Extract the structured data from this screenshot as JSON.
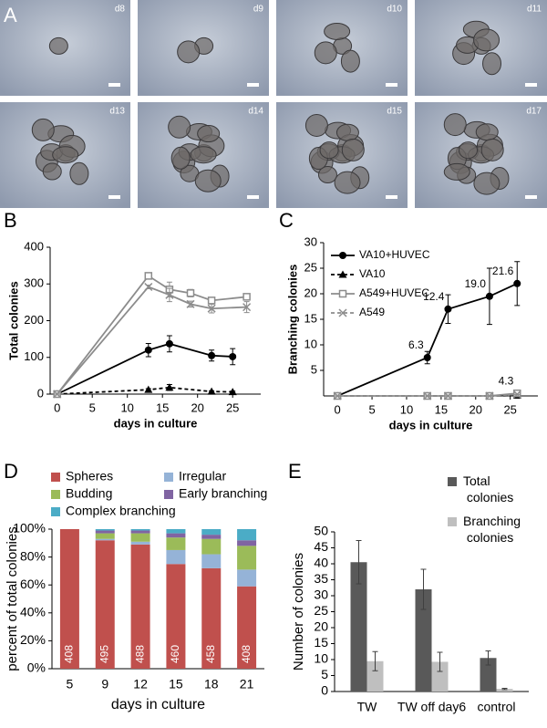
{
  "figure": {
    "panel_labels": [
      "A",
      "B",
      "C",
      "D",
      "E"
    ],
    "micrograph_labels": [
      "d8",
      "d9",
      "d10",
      "d11",
      "d13",
      "d14",
      "d15",
      "d17"
    ]
  },
  "chart_data": [
    {
      "type": "line",
      "ylabel": "Total colonies",
      "xlabel": "days in culture",
      "xlim": [
        -1,
        29
      ],
      "xticks": [
        0,
        5,
        10,
        15,
        20,
        25
      ],
      "ylim": [
        0,
        400
      ],
      "yticks": [
        0,
        100,
        200,
        300,
        400
      ],
      "series": [
        {
          "name": "VA10+HUVEC",
          "color": "#000000",
          "marker": "circle",
          "dash": false,
          "x": [
            0,
            13,
            16,
            22,
            25
          ],
          "values": [
            0,
            120,
            137,
            105,
            102
          ],
          "errors": [
            0,
            18,
            22,
            15,
            22
          ]
        },
        {
          "name": "VA10",
          "color": "#000000",
          "marker": "triangle",
          "dash": true,
          "x": [
            0,
            13,
            16,
            22,
            25
          ],
          "values": [
            0,
            12,
            18,
            7,
            6
          ],
          "errors": [
            0,
            3,
            8,
            2,
            2
          ]
        },
        {
          "name": "A549+HUVEC",
          "color": "#8c8c8c",
          "marker": "square",
          "dash": false,
          "x": [
            0,
            13,
            16,
            19,
            22,
            27
          ],
          "values": [
            0,
            322,
            285,
            275,
            255,
            265
          ],
          "errors": [
            0,
            8,
            20,
            10,
            8,
            8
          ]
        },
        {
          "name": "A549",
          "color": "#8c8c8c",
          "marker": "x",
          "dash": false,
          "x": [
            0,
            13,
            16,
            19,
            22,
            27
          ],
          "values": [
            0,
            292,
            270,
            245,
            233,
            237
          ],
          "errors": [
            0,
            5,
            18,
            8,
            12,
            15
          ]
        }
      ],
      "legend": false
    },
    {
      "type": "line",
      "ylabel": "Branching colonies",
      "xlabel": "days in culture",
      "xlim": [
        -2,
        29
      ],
      "xticks": [
        0,
        5,
        10,
        15,
        20,
        25
      ],
      "ylim": [
        0,
        30
      ],
      "yticks": [
        5,
        10,
        15,
        20,
        25,
        30
      ],
      "series": [
        {
          "name": "VA10+HUVEC",
          "color": "#000000",
          "marker": "circle",
          "dash": false,
          "x": [
            0,
            13,
            16,
            22,
            26
          ],
          "values": [
            0,
            7.5,
            17,
            19.5,
            22
          ],
          "errors": [
            0,
            1.2,
            2.8,
            5.5,
            4.3
          ]
        },
        {
          "name": "VA10",
          "color": "#000000",
          "marker": "triangle",
          "dash": true,
          "x": [
            0,
            13,
            16,
            22,
            26
          ],
          "values": [
            0,
            0,
            0,
            0,
            0.1
          ],
          "errors": [
            0,
            0,
            0,
            0,
            0
          ]
        },
        {
          "name": "A549+HUVEC",
          "color": "#8c8c8c",
          "marker": "square",
          "dash": false,
          "x": [
            0,
            13,
            16,
            22,
            26
          ],
          "values": [
            0,
            0,
            0,
            0,
            0.5
          ],
          "errors": [
            0,
            0,
            0,
            0,
            0.2
          ]
        },
        {
          "name": "A549",
          "color": "#8c8c8c",
          "marker": "x",
          "dash": true,
          "x": [
            0,
            13,
            16,
            22,
            26
          ],
          "values": [
            0,
            0,
            0,
            0,
            0.3
          ],
          "errors": [
            0,
            0,
            0,
            0,
            0
          ]
        }
      ],
      "legend": "upper left",
      "annotations": [
        {
          "text": "6.3",
          "x": 13,
          "y": 7.5
        },
        {
          "text": "12.4",
          "x": 16,
          "y": 17
        },
        {
          "text": "19.0",
          "x": 22,
          "y": 19.5
        },
        {
          "text": "21.6",
          "x": 26,
          "y": 22
        },
        {
          "text": "4.3",
          "x": 26,
          "y": 0.5
        }
      ]
    },
    {
      "type": "stacked_bar",
      "ylabel": "percent of total colonies",
      "xlabel": "days in culture",
      "categories": [
        "5",
        "9",
        "12",
        "15",
        "18",
        "21"
      ],
      "counts": [
        408,
        495,
        488,
        460,
        458,
        408
      ],
      "ylim": [
        0,
        100
      ],
      "yticks": [
        {
          "value": 0,
          "label": "0%"
        },
        {
          "value": 20,
          "label": "20%"
        },
        {
          "value": 40,
          "label": "40%"
        },
        {
          "value": 60,
          "label": "60%"
        },
        {
          "value": 80,
          "label": "80%"
        },
        {
          "value": 100,
          "label": "100%"
        }
      ],
      "series": [
        {
          "name": "Spheres",
          "color": "#c0504d",
          "values": [
            100,
            92,
            89,
            75,
            72,
            59
          ]
        },
        {
          "name": "Irregular",
          "color": "#95b3d7",
          "values": [
            0,
            1,
            2,
            10,
            10,
            12
          ]
        },
        {
          "name": "Budding",
          "color": "#9bbb59",
          "values": [
            0,
            4,
            6,
            9,
            11,
            17
          ]
        },
        {
          "name": "Early branching",
          "color": "#8064a2",
          "values": [
            0,
            2,
            2,
            3,
            3,
            4
          ]
        },
        {
          "name": "Complex branching",
          "color": "#4bacc6",
          "values": [
            0,
            1,
            1,
            3,
            4,
            8
          ]
        }
      ],
      "legend": "top"
    },
    {
      "type": "grouped_bar",
      "ylabel": "Number of colonies",
      "categories": [
        "TW",
        "TW off day6",
        "control"
      ],
      "ylim": [
        0,
        50
      ],
      "yticks": [
        0,
        5,
        10,
        15,
        20,
        25,
        30,
        35,
        40,
        45,
        50
      ],
      "series": [
        {
          "name": "Total colonies",
          "color": "#595959",
          "values": [
            40.5,
            32,
            10.5
          ],
          "errors": [
            6.8,
            6.3,
            2.2
          ]
        },
        {
          "name": "Branching colonies",
          "color": "#bfbfbf",
          "values": [
            9.5,
            9.3,
            0.8
          ],
          "errors": [
            3,
            3,
            0.2
          ]
        }
      ],
      "legend": "upper right"
    }
  ]
}
